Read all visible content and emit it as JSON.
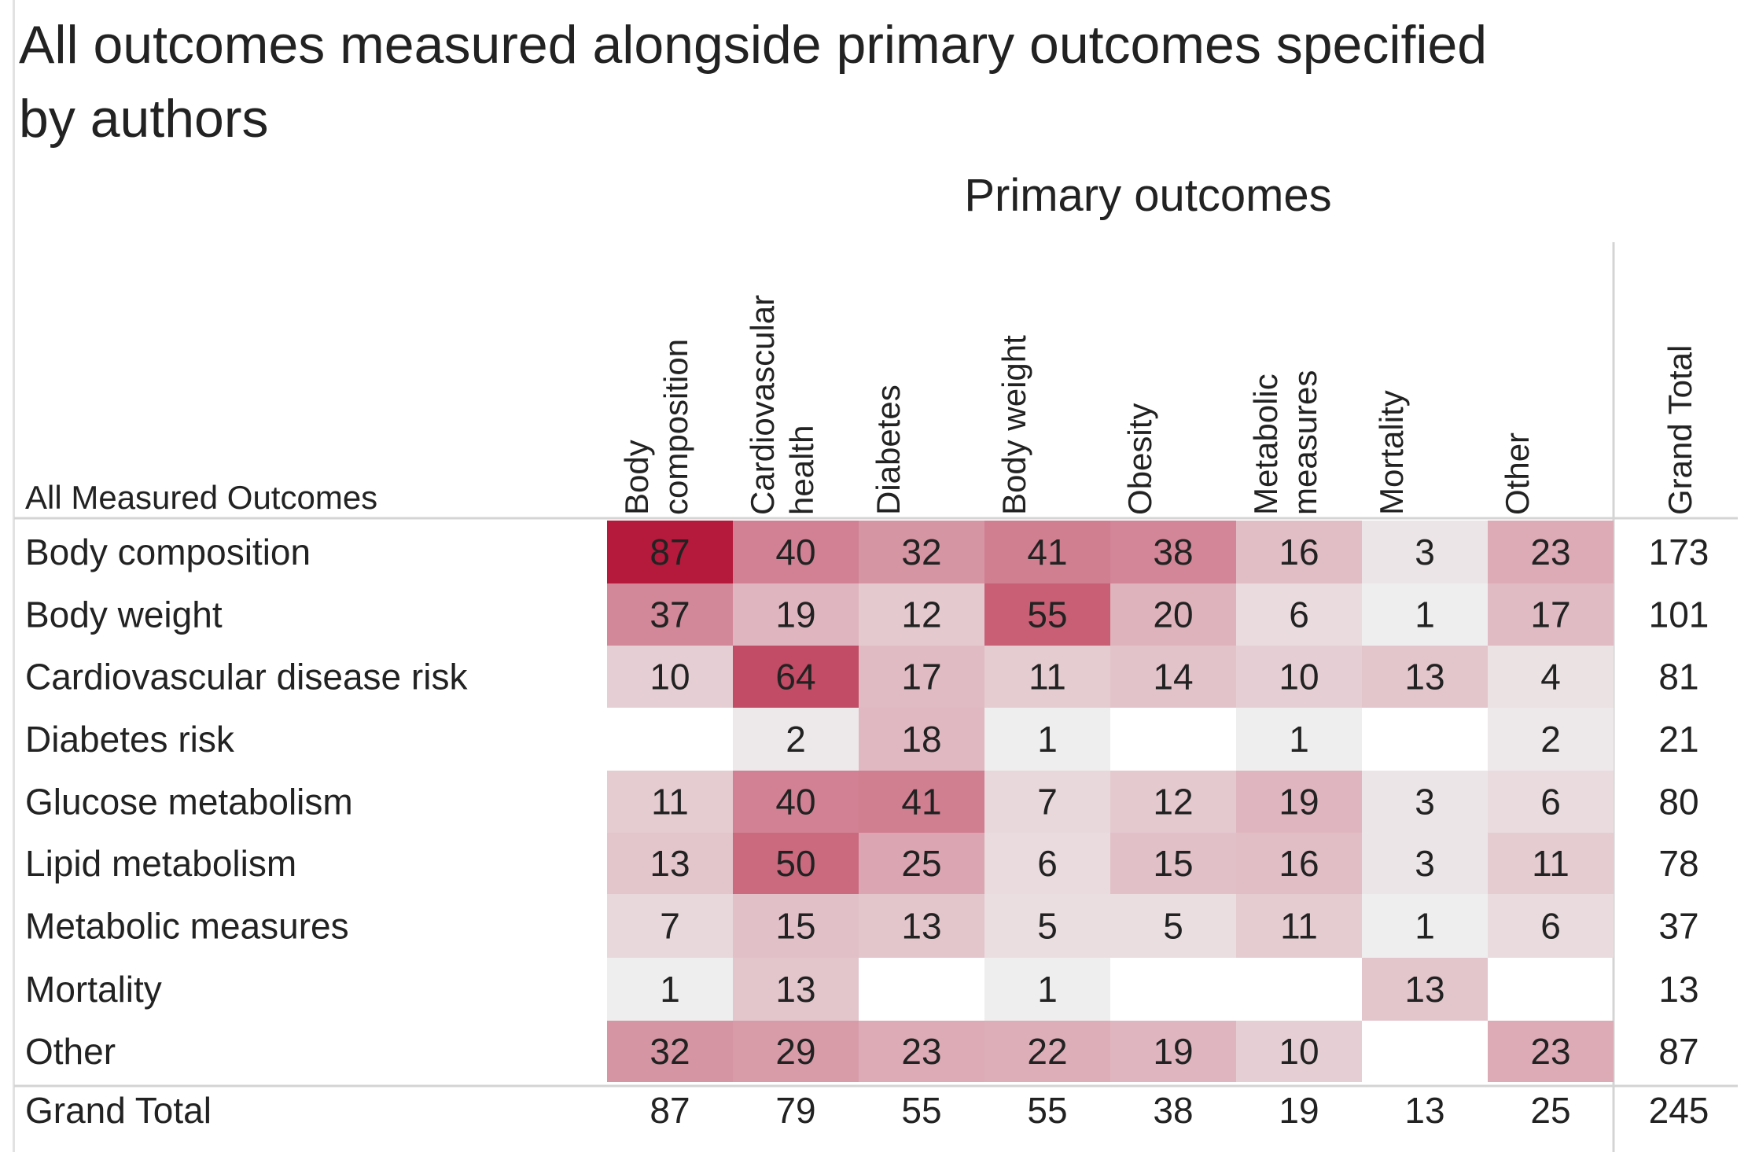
{
  "title": "All outcomes measured alongside primary outcomes specified by authors",
  "chart_data": {
    "type": "heatmap",
    "title": "All outcomes measured alongside primary outcomes specified by authors",
    "xlabel": "Primary outcomes",
    "ylabel": "All Measured Outcomes",
    "columns": [
      "Body composition",
      "Cardiovascular health",
      "Diabetes",
      "Body weight",
      "Obesity",
      "Metabolic measures",
      "Mortality",
      "Other"
    ],
    "column_label_lines": [
      [
        "Body",
        "composition"
      ],
      [
        "Cardiovascular",
        "health"
      ],
      [
        "Diabetes"
      ],
      [
        "Body weight"
      ],
      [
        "Obesity"
      ],
      [
        "Metabolic",
        "measures"
      ],
      [
        "Mortality"
      ],
      [
        "Other"
      ]
    ],
    "rows": [
      "Body composition",
      "Body weight",
      "Cardiovascular disease risk",
      "Diabetes risk",
      "Glucose metabolism",
      "Lipid metabolism",
      "Metabolic measures",
      "Mortality",
      "Other"
    ],
    "values": [
      [
        87,
        40,
        32,
        41,
        38,
        16,
        3,
        23
      ],
      [
        37,
        19,
        12,
        55,
        20,
        6,
        1,
        17
      ],
      [
        10,
        64,
        17,
        11,
        14,
        10,
        13,
        4
      ],
      [
        null,
        2,
        18,
        1,
        null,
        1,
        null,
        2
      ],
      [
        11,
        40,
        41,
        7,
        12,
        19,
        3,
        6
      ],
      [
        13,
        50,
        25,
        6,
        15,
        16,
        3,
        11
      ],
      [
        7,
        15,
        13,
        5,
        5,
        11,
        1,
        6
      ],
      [
        1,
        13,
        null,
        1,
        null,
        null,
        13,
        null
      ],
      [
        32,
        29,
        23,
        22,
        19,
        10,
        null,
        23
      ]
    ],
    "row_totals": [
      173,
      101,
      81,
      21,
      80,
      78,
      37,
      13,
      87
    ],
    "column_totals": [
      87,
      79,
      55,
      55,
      38,
      19,
      13,
      25
    ],
    "grand_total": 245,
    "grand_total_label": "Grand Total",
    "color_range": [
      1,
      87
    ],
    "colors": {
      "low": "#eeeeee",
      "high": "#b5193b",
      "text_dark": "#222222",
      "text_light": "#f5dde3",
      "divider": "#d4d4d4"
    },
    "legend": "none",
    "grid": false
  }
}
